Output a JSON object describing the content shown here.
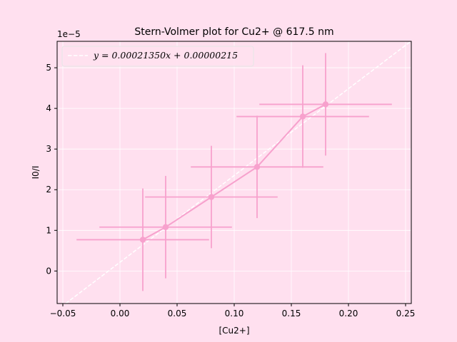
{
  "chart_data": {
    "type": "scatter",
    "title": "Stern-Volmer plot for Cu2+ @ 617.5 nm",
    "xlabel": "[Cu2+]",
    "ylabel": "I0/I",
    "y_offset_label": "1e−5",
    "y_scale": 1e-05,
    "xlim": [
      -0.055,
      0.255
    ],
    "ylim": [
      -8e-06,
      5.65e-05
    ],
    "x_ticks": [
      -0.05,
      0.0,
      0.05,
      0.1,
      0.15,
      0.2,
      0.25
    ],
    "x_tick_labels": [
      "−0.05",
      "0.00",
      "0.05",
      "0.10",
      "0.15",
      "0.20",
      "0.25"
    ],
    "y_ticks": [
      0,
      1,
      2,
      3,
      4,
      5
    ],
    "y_tick_labels": [
      "0",
      "1",
      "2",
      "3",
      "4",
      "5"
    ],
    "grid": true,
    "legend_position": "top-left",
    "series": [
      {
        "type": "line_with_errorbars",
        "color": "#f7a1cd",
        "x": [
          0.02,
          0.04,
          0.08,
          0.12,
          0.16,
          0.18
        ],
        "y": [
          7.7e-06,
          1.08e-05,
          1.82e-05,
          2.56e-05,
          3.8e-05,
          4.1e-05
        ],
        "xerr": [
          0.058,
          0.058,
          0.058,
          0.058,
          0.058,
          0.058
        ],
        "yerr": [
          1.26e-05,
          1.26e-05,
          1.26e-05,
          1.26e-05,
          1.26e-05,
          1.26e-05
        ]
      },
      {
        "name": "y = 0.00021350x + 0.00000215",
        "type": "fit_line",
        "style": "dashed",
        "color": "#ffffff",
        "slope": 0.0002135,
        "intercept": 2.15e-06
      }
    ]
  }
}
